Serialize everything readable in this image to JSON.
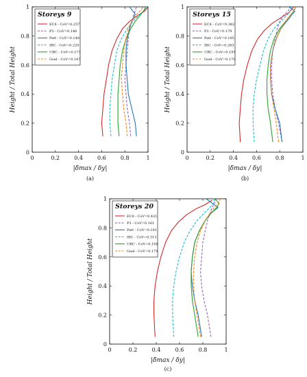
{
  "colors": {
    "EC8": "#d62728",
    "P3": "#9467bd",
    "Patt": "#1f77b4",
    "IBC": "#17becf",
    "UBC": "#2ca02c",
    "Goel": "#ff7f0e"
  },
  "chart_data": [
    {
      "type": "line",
      "panel_label": "(a)",
      "legend_title": "Storeys 9",
      "xlabel": "|δ̄max / δy|",
      "ylabel": "Height / Total Height",
      "xlim": [
        0,
        1
      ],
      "ylim": [
        0,
        1
      ],
      "xticks": [
        "0",
        "0.2",
        "0.4",
        "0.6",
        "0.8",
        "1"
      ],
      "yticks": [
        "0",
        "0.2",
        "0.4",
        "0.6",
        "0.8",
        "1"
      ],
      "grid": false,
      "legend_position": "top-left",
      "series": [
        {
          "name": "EC8 - CoV=0.257",
          "key": "EC8",
          "style": "solid",
          "x": [
            0.61,
            0.6,
            0.61,
            0.62,
            0.64,
            0.66,
            0.69,
            0.73,
            0.78,
            0.84,
            0.91,
            0.97,
            1.0
          ],
          "y": [
            0.11,
            0.2,
            0.3,
            0.4,
            0.5,
            0.6,
            0.7,
            0.78,
            0.85,
            0.9,
            0.94,
            0.97,
            1.0
          ]
        },
        {
          "name": "P3 - CoV=0.146",
          "key": "P3",
          "style": "dashed",
          "x": [
            0.85,
            0.84,
            0.82,
            0.81,
            0.8,
            0.81,
            0.82,
            0.83,
            0.84,
            0.86,
            0.88,
            0.9
          ],
          "y": [
            0.11,
            0.2,
            0.3,
            0.4,
            0.5,
            0.6,
            0.7,
            0.78,
            0.85,
            0.9,
            0.95,
            1.0
          ]
        },
        {
          "name": "Patt - CoV=0.148",
          "key": "Patt",
          "style": "solid",
          "x": [
            0.9,
            0.89,
            0.86,
            0.83,
            0.82,
            0.81,
            0.81,
            0.82,
            0.84,
            0.86,
            0.89,
            0.86,
            0.84
          ],
          "y": [
            0.11,
            0.2,
            0.3,
            0.4,
            0.5,
            0.6,
            0.7,
            0.78,
            0.85,
            0.9,
            0.95,
            0.98,
            1.0
          ]
        },
        {
          "name": "IBC - CoV=0.220",
          "key": "IBC",
          "style": "dashed",
          "x": [
            0.68,
            0.67,
            0.67,
            0.68,
            0.69,
            0.71,
            0.73,
            0.77,
            0.82,
            0.87,
            0.92,
            0.96,
            0.99
          ],
          "y": [
            0.11,
            0.2,
            0.3,
            0.4,
            0.5,
            0.6,
            0.7,
            0.78,
            0.85,
            0.9,
            0.94,
            0.97,
            1.0
          ]
        },
        {
          "name": "UBC - CoV=0.173",
          "key": "UBC",
          "style": "solid",
          "x": [
            0.75,
            0.74,
            0.74,
            0.74,
            0.75,
            0.76,
            0.78,
            0.81,
            0.85,
            0.89,
            0.93,
            0.96,
            0.98
          ],
          "y": [
            0.11,
            0.2,
            0.3,
            0.4,
            0.5,
            0.6,
            0.7,
            0.78,
            0.85,
            0.9,
            0.94,
            0.97,
            1.0
          ]
        },
        {
          "name": "Goel - CoV=0.147",
          "key": "Goel",
          "style": "dashed",
          "x": [
            0.82,
            0.81,
            0.79,
            0.78,
            0.77,
            0.78,
            0.79,
            0.81,
            0.83,
            0.86,
            0.89,
            0.93,
            0.96
          ],
          "y": [
            0.11,
            0.2,
            0.3,
            0.4,
            0.5,
            0.6,
            0.7,
            0.78,
            0.85,
            0.9,
            0.94,
            0.97,
            1.0
          ]
        }
      ]
    },
    {
      "type": "line",
      "panel_label": "(b)",
      "legend_title": "Storeys 15",
      "xlabel": "|δ̄max / δy|",
      "ylabel": "Height / Total Height",
      "xlim": [
        0,
        1
      ],
      "ylim": [
        0,
        1
      ],
      "xticks": [
        "0",
        "0.2",
        "0.4",
        "0.6",
        "0.8",
        "1"
      ],
      "yticks": [
        "0",
        "0.2",
        "0.4",
        "0.6",
        "0.8",
        "1"
      ],
      "grid": false,
      "legend_position": "top-left",
      "series": [
        {
          "name": "EC8 - CoV=0.362",
          "key": "EC8",
          "style": "solid",
          "x": [
            0.46,
            0.45,
            0.46,
            0.47,
            0.49,
            0.52,
            0.56,
            0.61,
            0.67,
            0.74,
            0.82,
            0.88,
            0.92
          ],
          "y": [
            0.07,
            0.2,
            0.3,
            0.4,
            0.5,
            0.6,
            0.7,
            0.78,
            0.84,
            0.89,
            0.93,
            0.96,
            1.0
          ]
        },
        {
          "name": "P3 - CoV=0.179",
          "key": "P3",
          "style": "dashed",
          "x": [
            0.82,
            0.79,
            0.76,
            0.74,
            0.73,
            0.73,
            0.74,
            0.76,
            0.78,
            0.8,
            0.83,
            0.87,
            0.9
          ],
          "y": [
            0.07,
            0.2,
            0.3,
            0.4,
            0.5,
            0.6,
            0.7,
            0.78,
            0.85,
            0.9,
            0.94,
            0.97,
            1.0
          ]
        },
        {
          "name": "Patt - CoV=0.185",
          "key": "Patt",
          "style": "solid",
          "x": [
            0.82,
            0.8,
            0.76,
            0.73,
            0.72,
            0.72,
            0.74,
            0.77,
            0.81,
            0.86,
            0.9,
            0.93,
            0.88
          ],
          "y": [
            0.07,
            0.2,
            0.3,
            0.4,
            0.5,
            0.6,
            0.7,
            0.78,
            0.85,
            0.9,
            0.94,
            0.97,
            1.0
          ]
        },
        {
          "name": "IBC - CoV=0.283",
          "key": "IBC",
          "style": "dashed",
          "x": [
            0.58,
            0.57,
            0.57,
            0.58,
            0.6,
            0.63,
            0.66,
            0.7,
            0.75,
            0.81,
            0.86,
            0.89,
            0.9
          ],
          "y": [
            0.07,
            0.2,
            0.3,
            0.4,
            0.5,
            0.6,
            0.7,
            0.78,
            0.85,
            0.9,
            0.94,
            0.97,
            1.0
          ]
        },
        {
          "name": "UBC - CoV=0.195",
          "key": "UBC",
          "style": "solid",
          "x": [
            0.74,
            0.72,
            0.7,
            0.69,
            0.69,
            0.7,
            0.72,
            0.75,
            0.8,
            0.85,
            0.89,
            0.92,
            0.94
          ],
          "y": [
            0.07,
            0.2,
            0.3,
            0.4,
            0.5,
            0.6,
            0.7,
            0.78,
            0.85,
            0.9,
            0.94,
            0.97,
            1.0
          ]
        },
        {
          "name": "Goel - CoV=0.170",
          "key": "Goel",
          "style": "dashed",
          "x": [
            0.79,
            0.77,
            0.75,
            0.73,
            0.72,
            0.72,
            0.74,
            0.77,
            0.81,
            0.85,
            0.89,
            0.92,
            0.94
          ],
          "y": [
            0.07,
            0.2,
            0.3,
            0.4,
            0.5,
            0.6,
            0.7,
            0.78,
            0.85,
            0.9,
            0.94,
            0.97,
            1.0
          ]
        }
      ]
    },
    {
      "type": "line",
      "panel_label": "(c)",
      "legend_title": "Storeys 20",
      "xlabel": "|δ̄max / δy|",
      "ylabel": "Height / Total Height",
      "xlim": [
        0,
        1
      ],
      "ylim": [
        0,
        1
      ],
      "xticks": [
        "0",
        "0.2",
        "0.4",
        "0.6",
        "0.8",
        "1"
      ],
      "yticks": [
        "0",
        "0.2",
        "0.4",
        "0.6",
        "0.8",
        "1"
      ],
      "grid": false,
      "legend_position": "top-left",
      "series": [
        {
          "name": "EC8 - CoV=0.421",
          "key": "EC8",
          "style": "solid",
          "x": [
            0.39,
            0.38,
            0.38,
            0.39,
            0.41,
            0.44,
            0.48,
            0.53,
            0.59,
            0.66,
            0.74,
            0.82,
            0.88
          ],
          "y": [
            0.05,
            0.2,
            0.3,
            0.4,
            0.5,
            0.6,
            0.7,
            0.78,
            0.84,
            0.89,
            0.93,
            0.96,
            0.99
          ]
        },
        {
          "name": "P3 - CoV=0.161",
          "key": "P3",
          "style": "dashed",
          "x": [
            0.87,
            0.84,
            0.81,
            0.79,
            0.78,
            0.79,
            0.8,
            0.82,
            0.84,
            0.86,
            0.88,
            0.9,
            0.92
          ],
          "y": [
            0.05,
            0.2,
            0.3,
            0.4,
            0.5,
            0.6,
            0.7,
            0.78,
            0.85,
            0.9,
            0.94,
            0.97,
            1.0
          ]
        },
        {
          "name": "Patt - CoV=0.181",
          "key": "Patt",
          "style": "solid",
          "x": [
            0.79,
            0.76,
            0.73,
            0.71,
            0.7,
            0.71,
            0.73,
            0.77,
            0.82,
            0.87,
            0.93,
            0.88,
            0.83
          ],
          "y": [
            0.05,
            0.2,
            0.3,
            0.4,
            0.5,
            0.6,
            0.7,
            0.78,
            0.85,
            0.9,
            0.94,
            0.97,
            1.0
          ]
        },
        {
          "name": "IBC - CoV=0.313",
          "key": "IBC",
          "style": "dashed",
          "x": [
            0.55,
            0.54,
            0.54,
            0.55,
            0.57,
            0.6,
            0.64,
            0.69,
            0.75,
            0.81,
            0.86,
            0.89,
            0.9
          ],
          "y": [
            0.05,
            0.2,
            0.3,
            0.4,
            0.5,
            0.6,
            0.7,
            0.78,
            0.85,
            0.9,
            0.94,
            0.97,
            1.0
          ]
        },
        {
          "name": "UBC - CoV=0.198",
          "key": "UBC",
          "style": "solid",
          "x": [
            0.76,
            0.73,
            0.71,
            0.7,
            0.7,
            0.71,
            0.73,
            0.77,
            0.82,
            0.87,
            0.92,
            0.94,
            0.9
          ],
          "y": [
            0.05,
            0.2,
            0.3,
            0.4,
            0.5,
            0.6,
            0.7,
            0.78,
            0.85,
            0.9,
            0.94,
            0.97,
            1.0
          ]
        },
        {
          "name": "Goel - CoV=0.179",
          "key": "Goel",
          "style": "dashed",
          "x": [
            0.78,
            0.75,
            0.73,
            0.72,
            0.72,
            0.73,
            0.75,
            0.78,
            0.82,
            0.86,
            0.9,
            0.93,
            0.95
          ],
          "y": [
            0.05,
            0.2,
            0.3,
            0.4,
            0.5,
            0.6,
            0.7,
            0.78,
            0.85,
            0.9,
            0.94,
            0.97,
            1.0
          ]
        }
      ]
    }
  ]
}
